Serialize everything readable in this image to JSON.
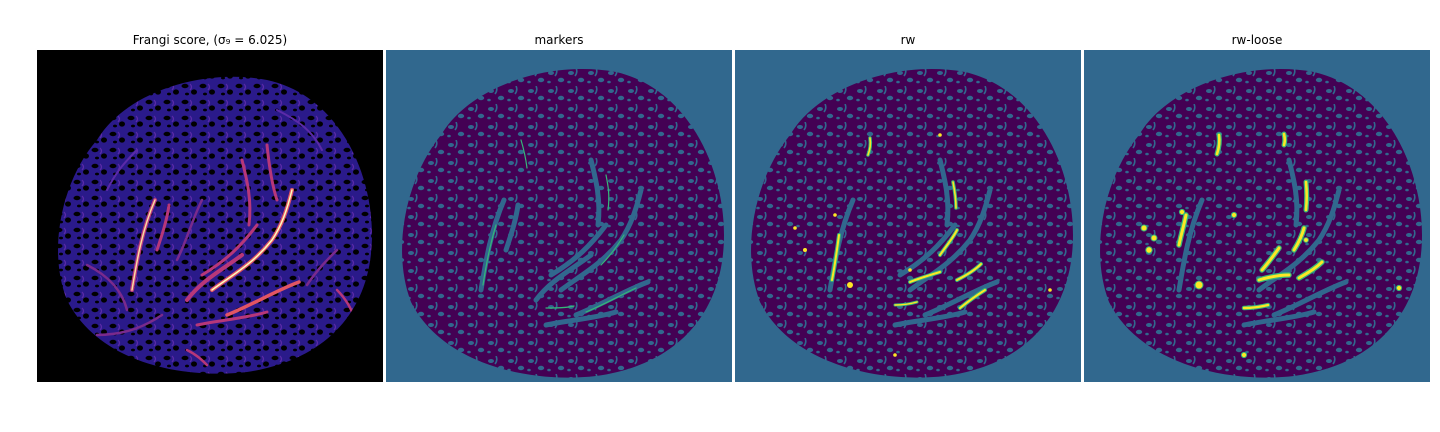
{
  "figure": {
    "panels": [
      {
        "id": "frangi",
        "title": "Frangi score, (σ₉ = 6.025)",
        "colormap": "magma"
      },
      {
        "id": "markers",
        "title": "markers",
        "colormap": "viridis"
      },
      {
        "id": "rw",
        "title": "rw",
        "colormap": "viridis"
      },
      {
        "id": "rw-loose",
        "title": "rw-loose",
        "colormap": "viridis"
      }
    ],
    "colors": {
      "background_dark": "#000000",
      "label_background": "#31688e",
      "label_tissue": "#440154",
      "label_vessel": "#fde725",
      "label_vessel_edge": "#35b779",
      "frangi_low": "#2a1a8a",
      "frangi_mid": "#b73779",
      "frangi_high": "#fcfdbf"
    }
  }
}
